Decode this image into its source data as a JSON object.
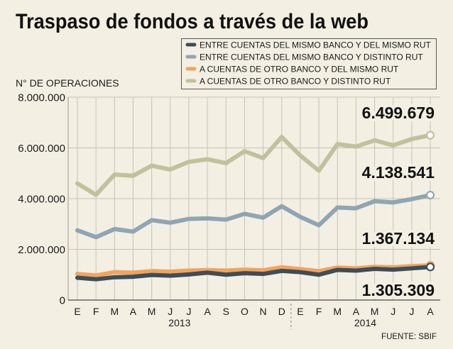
{
  "chart_data": {
    "type": "line",
    "title": "Traspaso de fondos a través de la web",
    "ylabel": "N° DE OPERACIONES",
    "xlabel": "",
    "x": [
      "E",
      "F",
      "M",
      "A",
      "M",
      "J",
      "J",
      "A",
      "S",
      "O",
      "N",
      "D",
      "E",
      "F",
      "M",
      "A",
      "M",
      "J",
      "J",
      "A"
    ],
    "x_year": [
      "2013",
      "2013",
      "2013",
      "2013",
      "2013",
      "2013",
      "2013",
      "2013",
      "2013",
      "2013",
      "2013",
      "2013",
      "2014",
      "2014",
      "2014",
      "2014",
      "2014",
      "2014",
      "2014",
      "2014"
    ],
    "ylim": [
      0,
      8000000
    ],
    "yticks": [
      {
        "value": 8000000,
        "label": "8.000.000"
      },
      {
        "value": 6000000,
        "label": "6.000.000"
      },
      {
        "value": 4000000,
        "label": "4.000.000"
      },
      {
        "value": 2000000,
        "label": "2.000.000"
      },
      {
        "value": 0,
        "label": "0"
      }
    ],
    "grid": true,
    "legend_position": "top-right",
    "series": [
      {
        "name": "ENTRE CUENTAS DEL MISMO BANCO Y DEL MISMO RUT",
        "color": "#3c4e5b",
        "values": [
          880000,
          820000,
          900000,
          920000,
          990000,
          960000,
          1010000,
          1080000,
          1000000,
          1060000,
          1030000,
          1150000,
          1100000,
          1000000,
          1190000,
          1160000,
          1230000,
          1200000,
          1250000,
          1305309
        ],
        "end_label": "1.305.309"
      },
      {
        "name": "ENTRE CUENTAS DEL MISMO BANCO Y DISTINTO RUT",
        "color": "#8fa5b4",
        "values": [
          2750000,
          2480000,
          2800000,
          2700000,
          3150000,
          3050000,
          3200000,
          3220000,
          3170000,
          3400000,
          3250000,
          3700000,
          3280000,
          2950000,
          3650000,
          3620000,
          3900000,
          3850000,
          3980000,
          4138541
        ],
        "end_label": "4.138.541"
      },
      {
        "name": "A CUENTAS DE OTRO BANCO Y DEL MISMO RUT",
        "color": "#f4a35a",
        "values": [
          1030000,
          970000,
          1100000,
          1080000,
          1140000,
          1120000,
          1160000,
          1180000,
          1160000,
          1200000,
          1170000,
          1290000,
          1220000,
          1140000,
          1280000,
          1250000,
          1310000,
          1290000,
          1340000,
          1367134
        ],
        "end_label": "1.367.134"
      },
      {
        "name": "A CUENTAS DE OTRO BANCO Y DISTINTO RUT",
        "color": "#c0c19d",
        "values": [
          4600000,
          4150000,
          4950000,
          4900000,
          5300000,
          5150000,
          5450000,
          5550000,
          5400000,
          5870000,
          5600000,
          6430000,
          5700000,
          5100000,
          6150000,
          6050000,
          6300000,
          6100000,
          6350000,
          6499679
        ],
        "end_label": "6.499.679"
      }
    ]
  },
  "source": "FUENTE: SBIF"
}
